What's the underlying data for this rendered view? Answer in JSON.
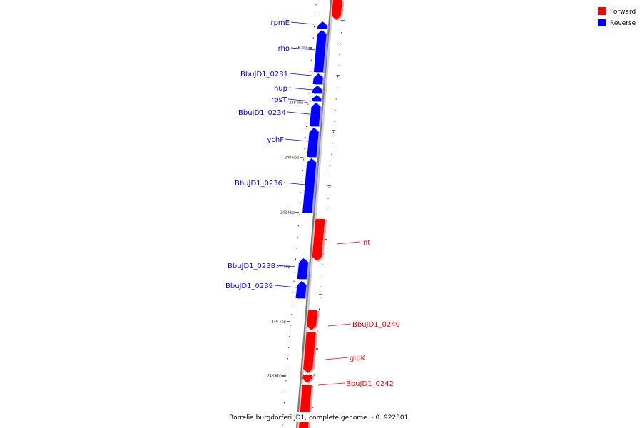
{
  "caption": "Borrelia burgdorferi JD1, complete genome. - 0..922801",
  "legend": [
    {
      "label": "Forward",
      "color": "#ff0000"
    },
    {
      "label": "Reverse",
      "color": "#0000ff"
    }
  ],
  "colors": {
    "forward": "#ff0000",
    "reverse": "#0000ff",
    "backbone": "#888888"
  },
  "ticks": [
    {
      "label": "236 kbp"
    },
    {
      "label": "238 kbp"
    },
    {
      "label": "240 kbp"
    },
    {
      "label": "242 kbp"
    },
    {
      "label": "244 kbp"
    },
    {
      "label": "246 kbp"
    },
    {
      "label": "248 kbp"
    }
  ],
  "genes": [
    {
      "name": "",
      "strand": "forward"
    },
    {
      "name": "rpmE",
      "strand": "reverse"
    },
    {
      "name": "rho",
      "strand": "reverse"
    },
    {
      "name": "BbuJD1_0231",
      "strand": "reverse"
    },
    {
      "name": "hup",
      "strand": "reverse"
    },
    {
      "name": "rpsT",
      "strand": "reverse"
    },
    {
      "name": "BbuJD1_0234",
      "strand": "reverse"
    },
    {
      "name": "ychF",
      "strand": "reverse"
    },
    {
      "name": "BbuJD1_0236",
      "strand": "reverse"
    },
    {
      "name": "Int",
      "strand": "forward"
    },
    {
      "name": "BbuJD1_0238",
      "strand": "reverse"
    },
    {
      "name": "BbuJD1_0239",
      "strand": "reverse"
    },
    {
      "name": "BbuJD1_0240",
      "strand": "forward"
    },
    {
      "name": "glpK",
      "strand": "forward"
    },
    {
      "name": "BbuJD1_0242",
      "strand": "forward"
    },
    {
      "name": "",
      "strand": "forward"
    }
  ]
}
